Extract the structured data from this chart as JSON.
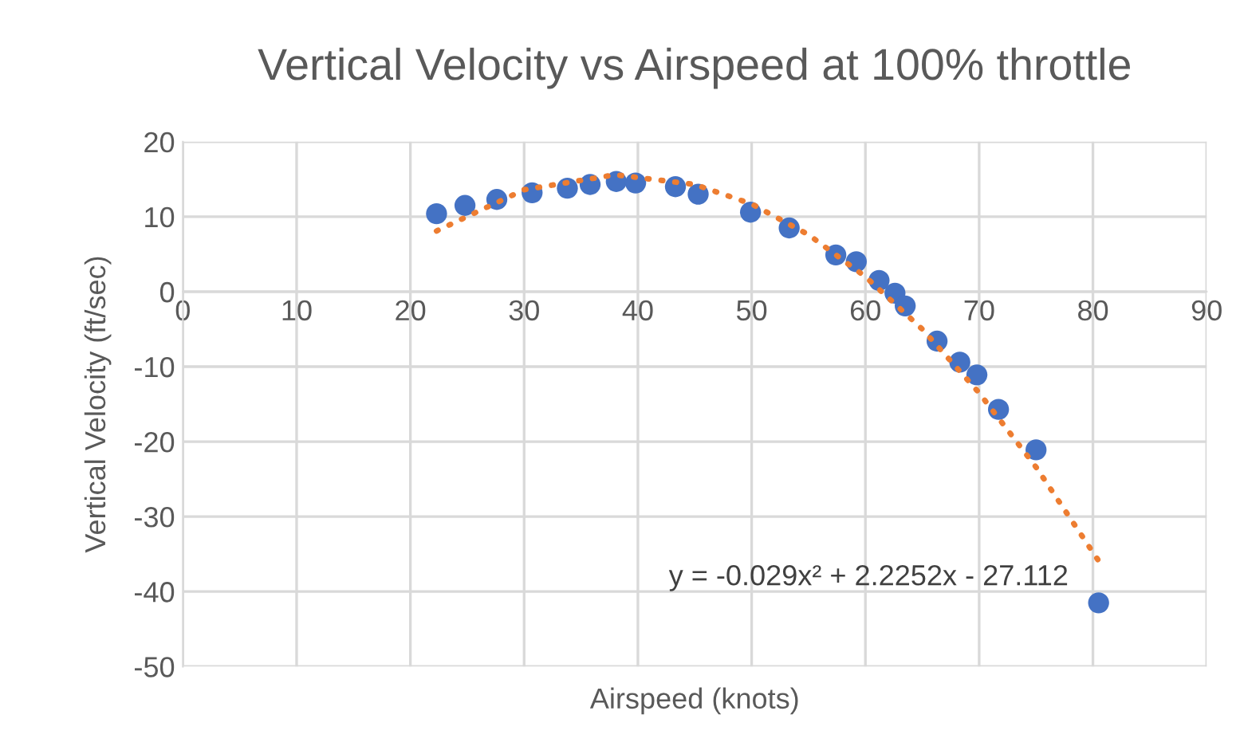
{
  "chart_data": {
    "type": "scatter",
    "title": "Vertical Velocity vs Airspeed at 100% throttle",
    "xlabel": "Airspeed (knots)",
    "ylabel": "Vertical Velocity (ft/sec)",
    "series": [
      {
        "color": "#4472c4",
        "marker": "circle",
        "x": [
          22.3,
          24.8,
          27.6,
          30.7,
          33.8,
          35.8,
          38.1,
          39.8,
          43.3,
          45.3,
          49.9,
          53.3,
          57.4,
          59.2,
          61.2,
          62.6,
          63.5,
          66.3,
          68.3,
          69.8,
          71.7,
          75.0,
          80.5
        ],
        "values": [
          10.4,
          11.5,
          12.3,
          13.2,
          13.8,
          14.3,
          14.7,
          14.5,
          14.0,
          13.0,
          10.6,
          8.5,
          4.9,
          4.0,
          1.5,
          -0.2,
          -1.9,
          -6.6,
          -9.4,
          -11.1,
          -15.7,
          -21.1,
          -41.5
        ]
      },
      {
        "type": "line",
        "color": "#ed7d31",
        "line_style": "dotted",
        "marker": "none",
        "x": [
          22.3,
          30,
          38,
          45,
          50,
          55,
          60,
          65,
          70,
          75,
          80.5
        ],
        "values": [
          8.1,
          13.6,
          15.6,
          14.3,
          11.7,
          7.6,
          2.0,
          -5.0,
          -13.5,
          -23.4,
          -35.9
        ]
      }
    ],
    "xlim": [
      0,
      90
    ],
    "xticks": [
      0,
      10,
      20,
      30,
      40,
      50,
      60,
      70,
      80,
      90
    ],
    "ylim": [
      -50,
      20
    ],
    "yticks": [
      -50,
      -40,
      -30,
      -20,
      -10,
      0,
      10,
      20
    ],
    "grid": true,
    "legend": false,
    "annotations": [
      "y = -0.029x² + 2.2252x - 27.112"
    ]
  }
}
